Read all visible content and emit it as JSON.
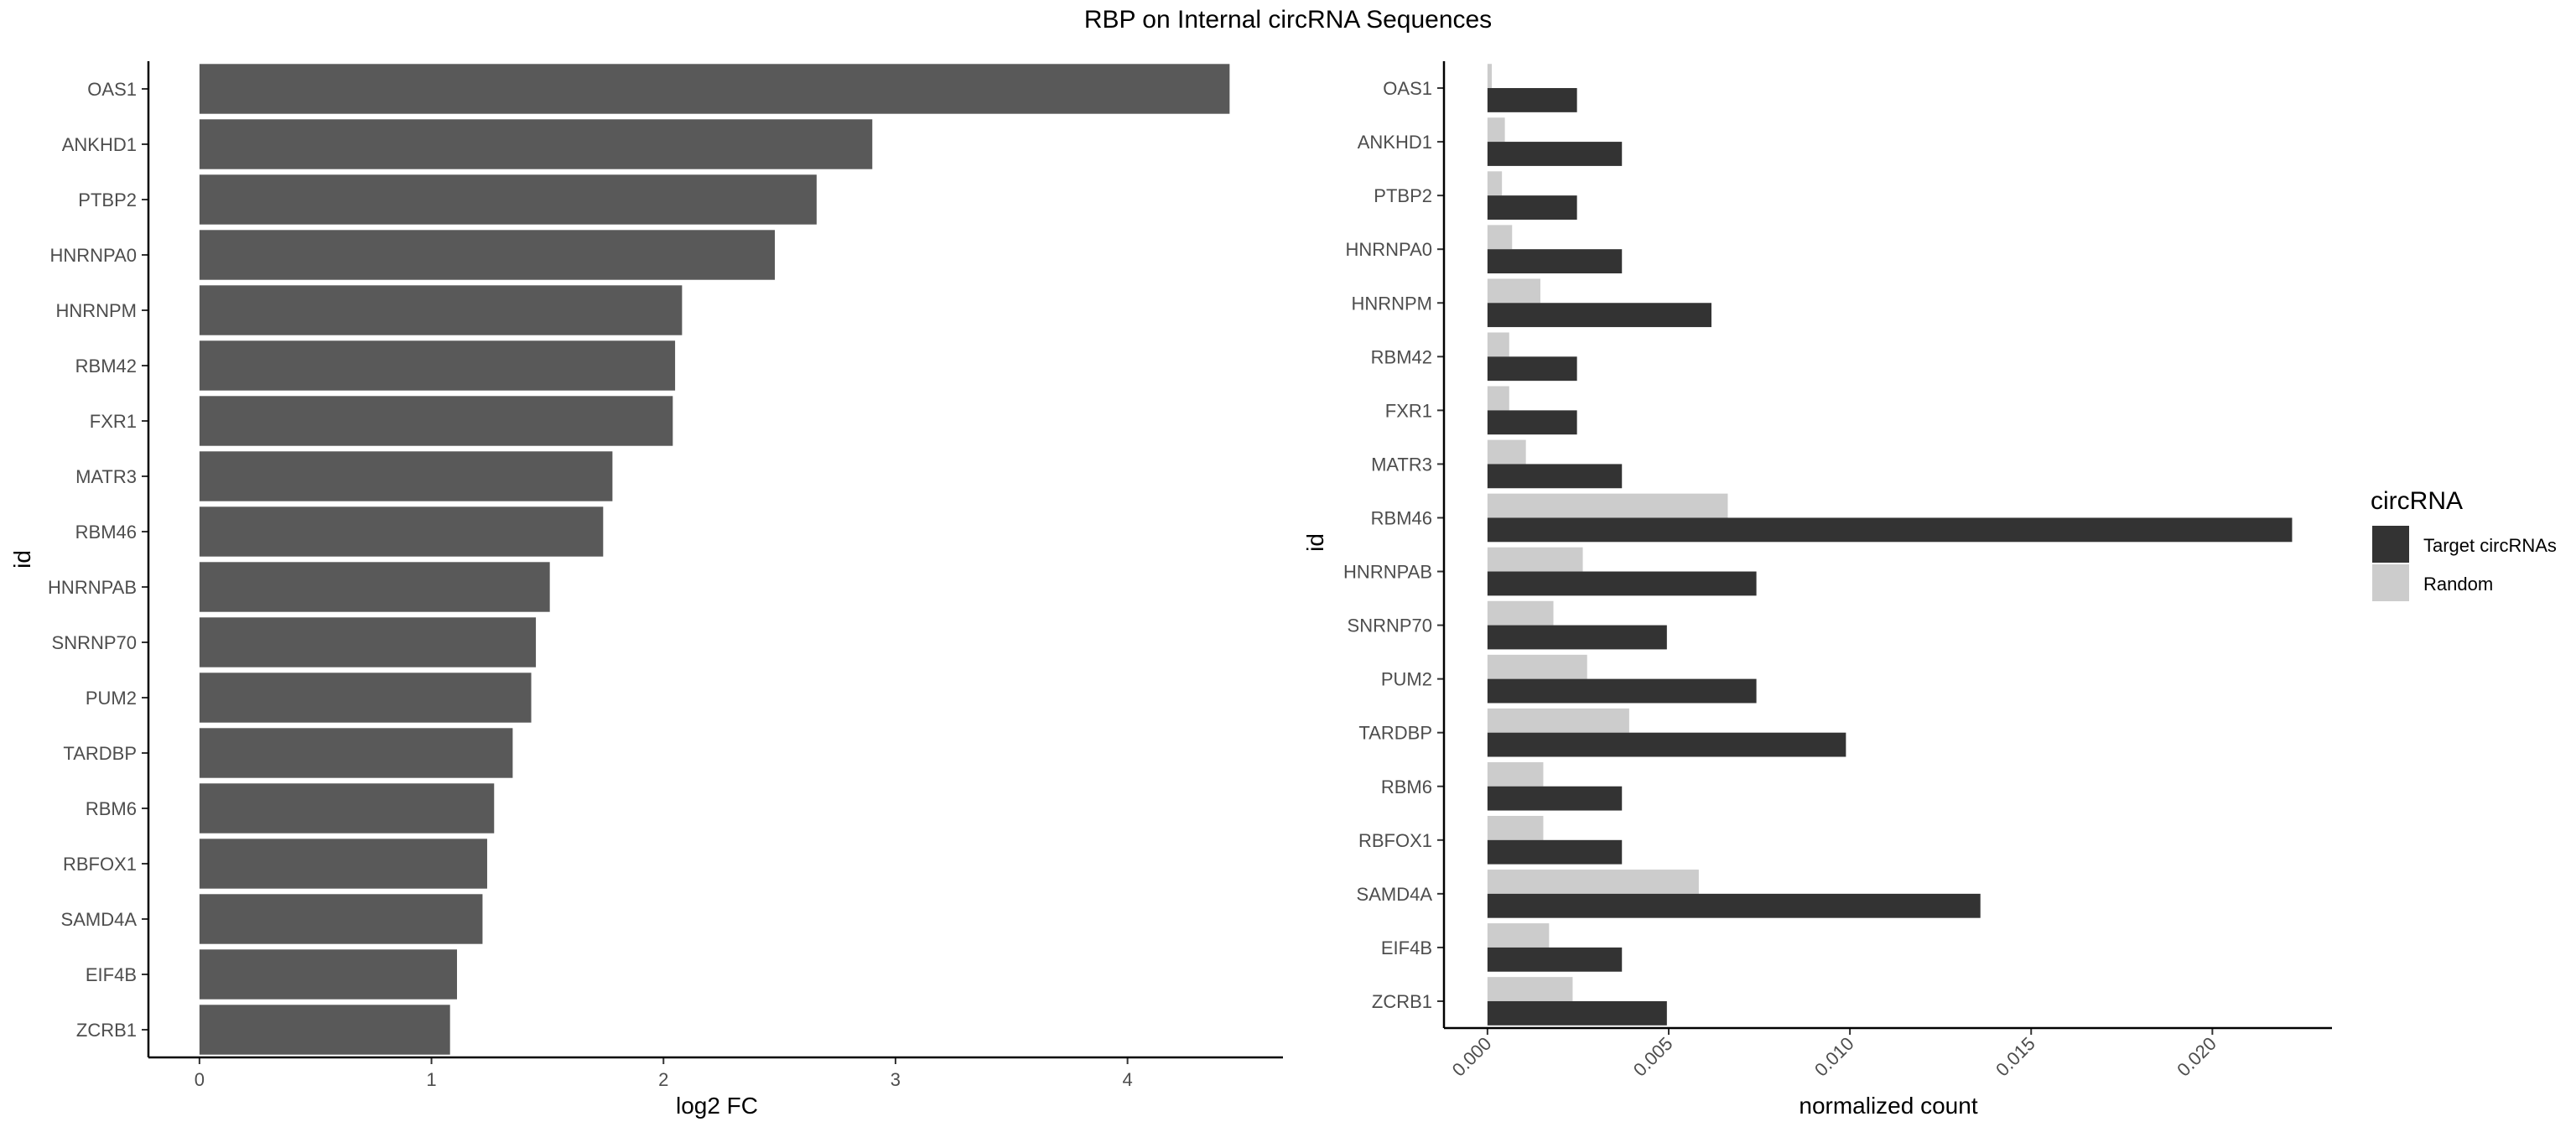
{
  "title": "RBP on Internal circRNA Sequences",
  "colors": {
    "left_bar": "#595959",
    "target": "#333333",
    "random": "#cccccc",
    "axis": "#000000",
    "tick_text": "#4d4d4d"
  },
  "chart_data": [
    {
      "type": "bar",
      "orientation": "horizontal",
      "categories": [
        "OAS1",
        "ANKHD1",
        "PTBP2",
        "HNRNPA0",
        "HNRNPM",
        "RBM42",
        "FXR1",
        "MATR3",
        "RBM46",
        "HNRNPAB",
        "SNRNP70",
        "PUM2",
        "TARDBP",
        "RBM6",
        "RBFOX1",
        "SAMD4A",
        "EIF4B",
        "ZCRB1"
      ],
      "values": [
        4.44,
        2.9,
        2.66,
        2.48,
        2.08,
        2.05,
        2.04,
        1.78,
        1.74,
        1.51,
        1.45,
        1.43,
        1.35,
        1.27,
        1.24,
        1.22,
        1.11,
        1.08
      ],
      "xlabel": "log2 FC",
      "ylabel": "id",
      "xticks": [
        "0",
        "1",
        "2",
        "3",
        "4"
      ],
      "xlim": [
        -0.22,
        4.67
      ]
    },
    {
      "type": "bar",
      "orientation": "horizontal",
      "grouped": true,
      "categories": [
        "OAS1",
        "ANKHD1",
        "PTBP2",
        "HNRNPA0",
        "HNRNPM",
        "RBM42",
        "FXR1",
        "MATR3",
        "RBM46",
        "HNRNPAB",
        "SNRNP70",
        "PUM2",
        "TARDBP",
        "RBM6",
        "RBFOX1",
        "SAMD4A",
        "EIF4B",
        "ZCRB1"
      ],
      "series": [
        {
          "name": "Target circRNAs",
          "values": [
            0.00247,
            0.00371,
            0.00247,
            0.00371,
            0.00618,
            0.00247,
            0.00247,
            0.00371,
            0.0222,
            0.00742,
            0.00495,
            0.00742,
            0.00989,
            0.00371,
            0.00371,
            0.0136,
            0.00371,
            0.00495
          ]
        },
        {
          "name": "Random",
          "values": [
            0.00012,
            0.00048,
            0.0004,
            0.00068,
            0.00146,
            0.0006,
            0.0006,
            0.00106,
            0.00663,
            0.00263,
            0.00182,
            0.00275,
            0.00391,
            0.00154,
            0.00154,
            0.00583,
            0.0017,
            0.00235
          ]
        }
      ],
      "xlabel": "normalized count",
      "ylabel": "id",
      "xticks": [
        "0.000",
        "0.005",
        "0.010",
        "0.015",
        "0.020"
      ],
      "xlim": [
        -0.0012,
        0.0233
      ],
      "legend": {
        "title": "circRNA",
        "placement": "right"
      }
    }
  ]
}
